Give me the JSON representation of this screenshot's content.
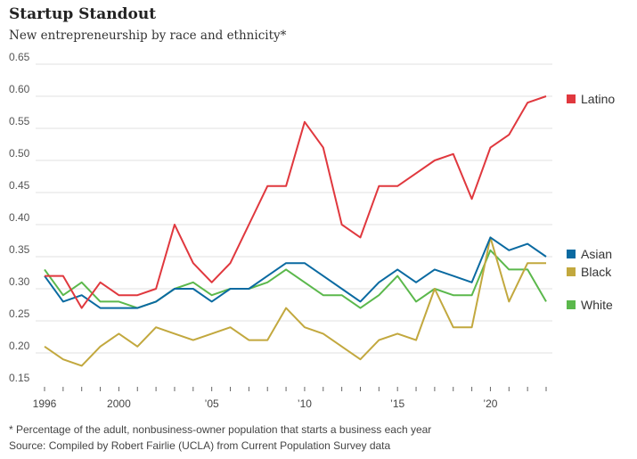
{
  "chart_data": {
    "type": "line",
    "title": "Startup Standout",
    "subtitle": "New entrepreneurship by race and ethnicity*",
    "xlabel": "",
    "ylabel": "",
    "x": [
      1996,
      1997,
      1998,
      1999,
      2000,
      2001,
      2002,
      2003,
      2004,
      2005,
      2006,
      2007,
      2008,
      2009,
      2010,
      2011,
      2012,
      2013,
      2014,
      2015,
      2016,
      2017,
      2018,
      2019,
      2020,
      2021,
      2022,
      2023
    ],
    "ylim": [
      0.15,
      0.65
    ],
    "yticks": [
      "0.15",
      "0.20",
      "0.25",
      "0.30",
      "0.35",
      "0.40",
      "0.45",
      "0.50",
      "0.55",
      "0.60",
      "0.65"
    ],
    "xticks": [
      {
        "year": 1996,
        "label": "1996"
      },
      {
        "year": 2000,
        "label": "2000"
      },
      {
        "year": 2005,
        "label": "’05"
      },
      {
        "year": 2010,
        "label": "’10"
      },
      {
        "year": 2015,
        "label": "’15"
      },
      {
        "year": 2020,
        "label": "’20"
      }
    ],
    "grid": true,
    "legend": "right",
    "series": [
      {
        "name": "Latino",
        "color": "#e0383e",
        "values": [
          0.32,
          0.32,
          0.27,
          0.31,
          0.29,
          0.29,
          0.3,
          0.4,
          0.34,
          0.31,
          0.34,
          0.4,
          0.46,
          0.46,
          0.56,
          0.52,
          0.4,
          0.38,
          0.46,
          0.46,
          0.48,
          0.5,
          0.51,
          0.44,
          0.52,
          0.54,
          0.59,
          0.6
        ]
      },
      {
        "name": "Asian",
        "color": "#0a6aa1",
        "values": [
          0.32,
          0.28,
          0.29,
          0.27,
          0.27,
          0.27,
          0.28,
          0.3,
          0.3,
          0.28,
          0.3,
          0.3,
          0.32,
          0.34,
          0.34,
          0.32,
          0.3,
          0.28,
          0.31,
          0.33,
          0.31,
          0.33,
          0.32,
          0.31,
          0.38,
          0.36,
          0.37,
          0.35
        ]
      },
      {
        "name": "Black",
        "color": "#c2a83e",
        "values": [
          0.21,
          0.19,
          0.18,
          0.21,
          0.23,
          0.21,
          0.24,
          0.23,
          0.22,
          0.23,
          0.24,
          0.22,
          0.22,
          0.27,
          0.24,
          0.23,
          0.21,
          0.19,
          0.22,
          0.23,
          0.22,
          0.3,
          0.24,
          0.24,
          0.38,
          0.28,
          0.34,
          0.34
        ]
      },
      {
        "name": "White",
        "color": "#5bb84c",
        "values": [
          0.33,
          0.29,
          0.31,
          0.28,
          0.28,
          0.27,
          0.28,
          0.3,
          0.31,
          0.29,
          0.3,
          0.3,
          0.31,
          0.33,
          0.31,
          0.29,
          0.29,
          0.27,
          0.29,
          0.32,
          0.28,
          0.3,
          0.29,
          0.29,
          0.36,
          0.33,
          0.33,
          0.28
        ]
      }
    ]
  },
  "footnote": "* Percentage of the adult, nonbusiness-owner population that starts a business each year",
  "source": "Source: Compiled by Robert Fairlie (UCLA) from Current Population Survey data"
}
